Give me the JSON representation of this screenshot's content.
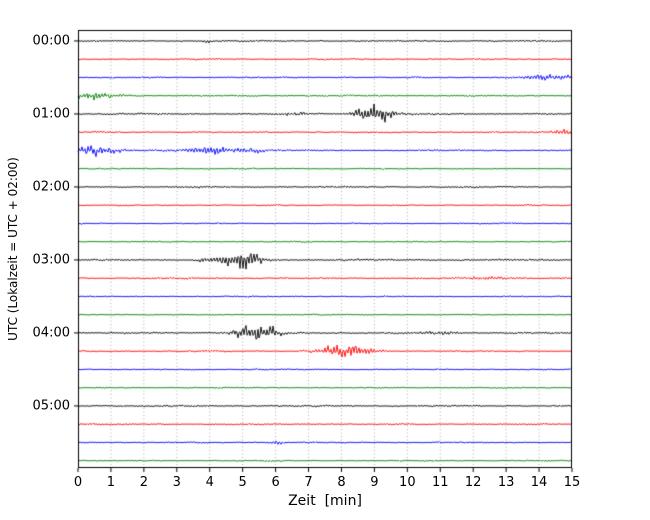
{
  "chart_data": {
    "type": "line",
    "chart_kind": "seismogram-helicorder",
    "title": "",
    "xlabel": "Zeit  [min]",
    "ylabel": "UTC (Lokalzeit = UTC + 02:00)",
    "x_range_minutes": [
      0,
      15
    ],
    "x_ticks": [
      "0",
      "1",
      "2",
      "3",
      "4",
      "5",
      "6",
      "7",
      "8",
      "9",
      "10",
      "11",
      "12",
      "13",
      "14",
      "15"
    ],
    "minutes_per_line": 15,
    "grid": "dotted-vertical",
    "hour_labels": [
      "00:00",
      "01:00",
      "02:00",
      "03:00",
      "04:00",
      "05:00"
    ],
    "trace_colors_cycle": [
      "#000000",
      "#ff0000",
      "#0000ff",
      "#008000"
    ],
    "traces": [
      {
        "start": "00:00",
        "color": "#000000",
        "noise": 1.2,
        "events": [
          {
            "t": 3.9,
            "amp": 2.0,
            "w": 0.15
          }
        ]
      },
      {
        "start": "00:15",
        "color": "#ff0000",
        "noise": 1.1,
        "events": []
      },
      {
        "start": "00:30",
        "color": "#0000ff",
        "noise": 1.1,
        "events": [
          {
            "t": 14.3,
            "amp": 3.5,
            "w": 0.9
          }
        ]
      },
      {
        "start": "00:45",
        "color": "#008000",
        "noise": 1.1,
        "events": [
          {
            "t": 0.4,
            "amp": 5.0,
            "w": 0.9
          }
        ]
      },
      {
        "start": "01:00",
        "color": "#000000",
        "noise": 1.3,
        "events": [
          {
            "t": 9.0,
            "amp": 14.0,
            "w": 0.55
          },
          {
            "t": 6.6,
            "amp": 2.2,
            "w": 0.35
          }
        ]
      },
      {
        "start": "01:15",
        "color": "#ff0000",
        "noise": 1.1,
        "events": [
          {
            "t": 14.7,
            "amp": 4.0,
            "w": 0.35
          }
        ]
      },
      {
        "start": "01:30",
        "color": "#0000ff",
        "noise": 1.2,
        "events": [
          {
            "t": 0.5,
            "amp": 7.0,
            "w": 0.7
          },
          {
            "t": 4.1,
            "amp": 6.0,
            "w": 0.7
          },
          {
            "t": 5.3,
            "amp": 3.0,
            "w": 0.5
          }
        ]
      },
      {
        "start": "01:45",
        "color": "#008000",
        "noise": 1.0,
        "events": []
      },
      {
        "start": "02:00",
        "color": "#000000",
        "noise": 1.2,
        "events": []
      },
      {
        "start": "02:15",
        "color": "#ff0000",
        "noise": 1.0,
        "events": []
      },
      {
        "start": "02:30",
        "color": "#0000ff",
        "noise": 1.0,
        "events": []
      },
      {
        "start": "02:45",
        "color": "#008000",
        "noise": 1.0,
        "events": []
      },
      {
        "start": "03:00",
        "color": "#000000",
        "noise": 1.3,
        "events": [
          {
            "t": 5.0,
            "amp": 13.0,
            "w": 0.6
          },
          {
            "t": 4.2,
            "amp": 4.0,
            "w": 0.4
          }
        ]
      },
      {
        "start": "03:15",
        "color": "#ff0000",
        "noise": 1.2,
        "events": [
          {
            "t": 12.7,
            "amp": 2.0,
            "w": 0.8
          }
        ]
      },
      {
        "start": "03:30",
        "color": "#0000ff",
        "noise": 1.0,
        "events": []
      },
      {
        "start": "03:45",
        "color": "#008000",
        "noise": 1.0,
        "events": []
      },
      {
        "start": "04:00",
        "color": "#000000",
        "noise": 1.3,
        "events": [
          {
            "t": 5.4,
            "amp": 12.0,
            "w": 0.6
          },
          {
            "t": 11.0,
            "amp": 2.0,
            "w": 0.6
          }
        ]
      },
      {
        "start": "04:15",
        "color": "#ff0000",
        "noise": 1.2,
        "events": [
          {
            "t": 8.1,
            "amp": 8.0,
            "w": 0.8
          }
        ]
      },
      {
        "start": "04:30",
        "color": "#0000ff",
        "noise": 1.0,
        "events": []
      },
      {
        "start": "04:45",
        "color": "#008000",
        "noise": 1.0,
        "events": []
      },
      {
        "start": "05:00",
        "color": "#000000",
        "noise": 1.2,
        "events": []
      },
      {
        "start": "05:15",
        "color": "#ff0000",
        "noise": 1.1,
        "events": []
      },
      {
        "start": "05:30",
        "color": "#0000ff",
        "noise": 1.0,
        "events": [
          {
            "t": 6.0,
            "amp": 2.5,
            "w": 0.2
          }
        ]
      },
      {
        "start": "05:45",
        "color": "#008000",
        "noise": 1.0,
        "events": []
      }
    ]
  }
}
